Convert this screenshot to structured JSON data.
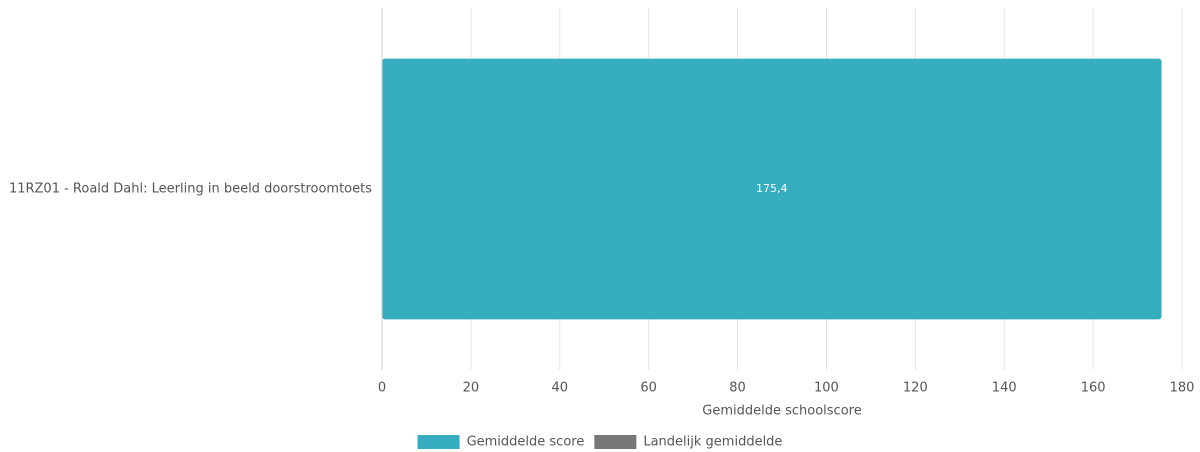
{
  "chart_data": {
    "type": "barh",
    "categories": [
      "11RZ01 - Roald Dahl: Leerling in beeld doorstroomtoets"
    ],
    "series": [
      {
        "name": "Gemiddelde score",
        "color": "#37aec0",
        "values": [
          175.4
        ],
        "value_labels": [
          "175,4"
        ]
      },
      {
        "name": "Landelijk gemiddelde",
        "color": "#777777",
        "values": [
          null
        ]
      }
    ],
    "x_label": "Gemiddelde schoolscore",
    "xlim": [
      0,
      180
    ],
    "xticks": [
      0,
      20,
      40,
      60,
      80,
      100,
      120,
      140,
      160,
      180
    ],
    "grid": true
  }
}
